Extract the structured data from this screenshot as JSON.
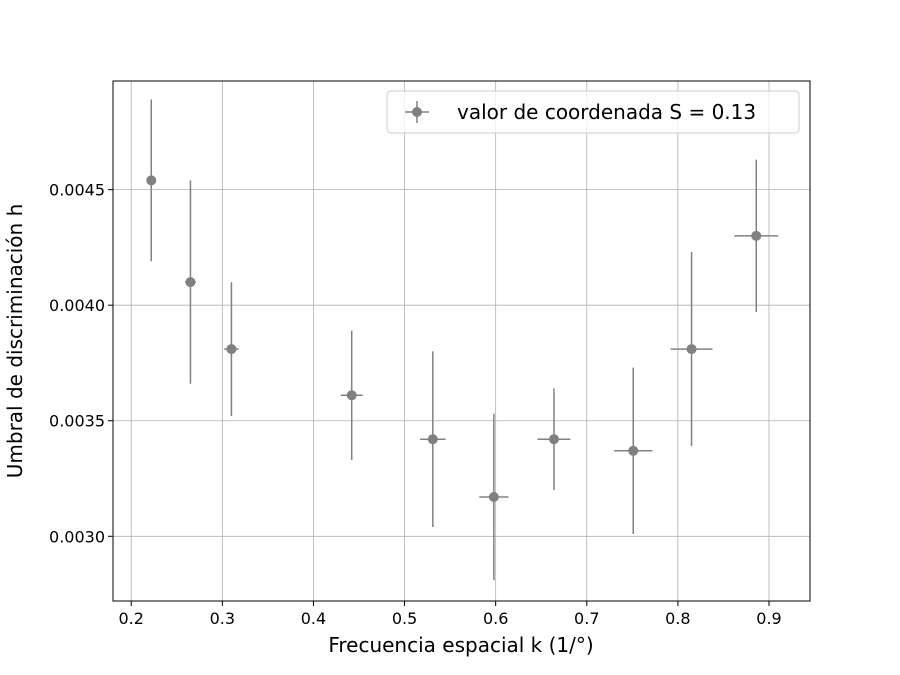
{
  "chart_data": {
    "type": "scatter",
    "xlabel": "Frecuencia espacial k (1/°)",
    "ylabel": "Umbral de discriminación h",
    "xlim": [
      0.18,
      0.945
    ],
    "ylim": [
      0.00272,
      0.00497
    ],
    "xticks": [
      0.2,
      0.3,
      0.4,
      0.5,
      0.6,
      0.7,
      0.8,
      0.9
    ],
    "xtick_labels": [
      "0.2",
      "0.3",
      "0.4",
      "0.5",
      "0.6",
      "0.7",
      "0.8",
      "0.9"
    ],
    "yticks": [
      0.003,
      0.0035,
      0.004,
      0.0045
    ],
    "ytick_labels": [
      "0.0030",
      "0.0035",
      "0.0040",
      "0.0045"
    ],
    "grid": true,
    "legend_position": "top-right",
    "series": [
      {
        "name": "valor de coordenada S = 0.13",
        "color": "#808080",
        "marker": "circle",
        "points": [
          {
            "x": 0.222,
            "y": 0.00454,
            "xerr": 0.005,
            "yerr": 0.00035
          },
          {
            "x": 0.265,
            "y": 0.0041,
            "xerr": 0.006,
            "yerr": 0.00044
          },
          {
            "x": 0.31,
            "y": 0.00381,
            "xerr": 0.008,
            "yerr": 0.00029
          },
          {
            "x": 0.442,
            "y": 0.00361,
            "xerr": 0.012,
            "yerr": 0.00028
          },
          {
            "x": 0.531,
            "y": 0.00342,
            "xerr": 0.014,
            "yerr": 0.00038
          },
          {
            "x": 0.598,
            "y": 0.00317,
            "xerr": 0.016,
            "yerr": 0.00036
          },
          {
            "x": 0.664,
            "y": 0.00342,
            "xerr": 0.018,
            "yerr": 0.00022
          },
          {
            "x": 0.751,
            "y": 0.00337,
            "xerr": 0.021,
            "yerr": 0.00036
          },
          {
            "x": 0.815,
            "y": 0.00381,
            "xerr": 0.023,
            "yerr": 0.00042
          },
          {
            "x": 0.886,
            "y": 0.0043,
            "xerr": 0.024,
            "yerr": 0.00033
          }
        ]
      }
    ]
  }
}
